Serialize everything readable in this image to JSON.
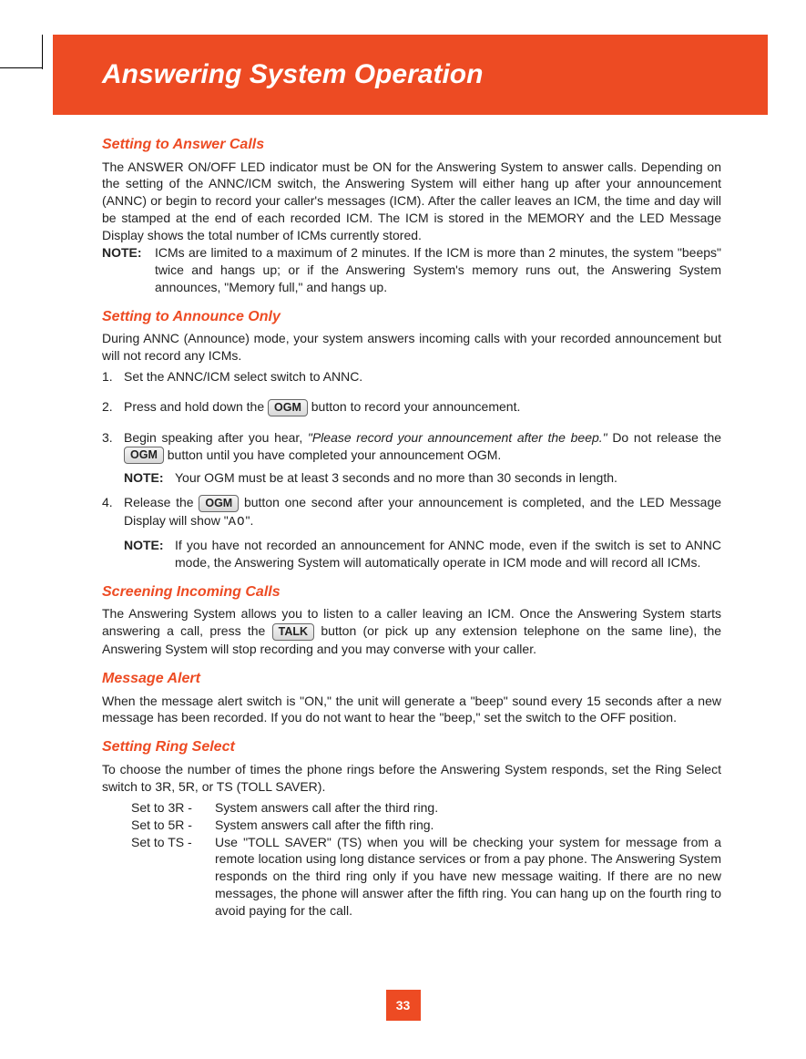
{
  "colors": {
    "accent": "#ed4b23",
    "text": "#222222",
    "white": "#ffffff"
  },
  "header": {
    "title": "Answering System Operation"
  },
  "s1": {
    "heading": "Setting to Answer Calls",
    "p1": "The ANSWER ON/OFF LED indicator must be ON for the Answering System to answer calls. Depending on the setting of the ANNC/ICM switch, the Answering System will either hang up after your announcement (ANNC) or begin to record your caller's messages (ICM). After the caller leaves an ICM, the time and day will be stamped at the end of each recorded ICM. The ICM is stored in the MEMORY and the LED Message Display shows the total number of ICMs currently stored.",
    "note_label": "NOTE:",
    "note_body": "ICMs are limited to a maximum of 2 minutes. If the ICM is more than 2 minutes, the system \"beeps\" twice and hangs up; or if the Answering System's memory runs out, the Answering System announces, \"Memory full,\" and hangs up."
  },
  "s2": {
    "heading": "Setting to Announce Only",
    "p1": "During ANNC (Announce) mode, your system answers incoming calls with your recorded announcement but will not record any ICMs.",
    "li1": "Set the ANNC/ICM select switch to ANNC.",
    "li2_a": "Press and hold down the ",
    "li2_btn": "OGM",
    "li2_b": " button to record your announcement.",
    "li3_a": "Begin speaking after you hear, ",
    "li3_quote": "\"Please record your announcement after the beep.\"",
    "li3_b": " Do not release the ",
    "li3_btn": "OGM",
    "li3_c": " button until you have completed your announcement OGM.",
    "li3_note_label": "NOTE:",
    "li3_note": "Your OGM must be at least 3 seconds and no more than 30 seconds in length.",
    "li4_a": "Release the ",
    "li4_btn": "OGM",
    "li4_b": " button one second after your announcement is completed, and the LED Message Display will show \"",
    "li4_seg": "AO",
    "li4_c": "\".",
    "li4_note_label": "NOTE:",
    "li4_note": "If you have not recorded an announcement for ANNC mode, even if the switch is set to ANNC mode, the Answering System will automatically operate in ICM mode and will record all ICMs."
  },
  "s3": {
    "heading": "Screening Incoming Calls",
    "p_a": "The Answering System allows you to listen to a caller leaving an ICM. Once the Answering System starts answering a call, press the ",
    "btn": "TALK",
    "p_b": " button (or pick up any extension telephone on the same line), the Answering System will stop recording and you may converse with your caller."
  },
  "s4": {
    "heading": "Message Alert",
    "p1": "When the message alert switch is \"ON,\" the unit will generate a \"beep\" sound every 15 seconds after a new message has been recorded. If you do not want to hear the \"beep,\" set the switch to the OFF position."
  },
  "s5": {
    "heading": "Setting Ring Select",
    "p1": "To choose the number of times the phone rings before the Answering System responds, set the Ring Select switch to 3R, 5R, or TS (TOLL SAVER).",
    "r1_l": "Set to 3R - ",
    "r1_b": "System answers call after the third ring.",
    "r2_l": "Set to 5R - ",
    "r2_b": "System answers call after the fifth ring.",
    "r3_l": "Set to TS - ",
    "r3_b": "Use \"TOLL SAVER\" (TS) when you will be checking your system for message from a remote location using long distance services or from a pay phone. The Answering System responds on the third ring only if you have new message waiting. If there are no new messages, the phone will answer after the fifth ring. You can hang up on the fourth ring to avoid paying for the call."
  },
  "page_number": "33"
}
